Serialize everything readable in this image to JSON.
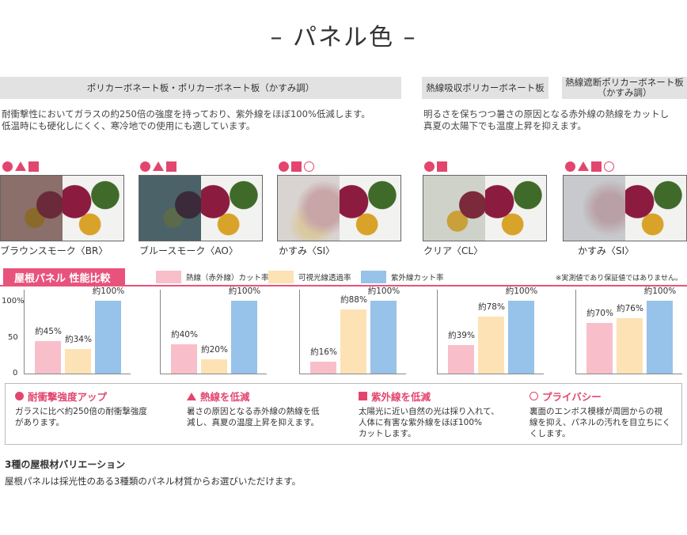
{
  "title": "– パネル色 –",
  "headers": [
    "ポリカーボネート板・ポリカーボネート板（かすみ調）",
    "熱線吸収ポリカーボネート板",
    "熱線遮断ポリカーボネート板（かすみ調）"
  ],
  "descriptions": [
    [
      "耐衝撃性においてガラスの約250倍の強度を持っており、紫外線をほぼ100%低減します。",
      "低温時にも硬化しにくく、寒冷地での使用にも適しています。"
    ],
    [
      "明るさを保ちつつ暑さの原因となる赤外線の熱線をカットし",
      "真夏の太陽下でも温度上昇を抑えます。"
    ]
  ],
  "panels": [
    {
      "label": "ブラウンスモーク〈BR〉",
      "marks": [
        "circle",
        "triangle",
        "square"
      ],
      "tint": "#8a6f6a"
    },
    {
      "label": "ブルースモーク〈AO〉",
      "marks": [
        "circle",
        "triangle",
        "square"
      ],
      "tint": "#4a6268"
    },
    {
      "label": "かすみ〈SI〉",
      "marks": [
        "circle",
        "square",
        "circle-outline"
      ],
      "tint": "#d9d4d2"
    },
    {
      "label": "クリア〈CL〉",
      "marks": [
        "circle",
        "square"
      ],
      "tint": "#cfd2c8"
    },
    {
      "label": "かすみ〈SI〉",
      "marks": [
        "circle",
        "triangle",
        "square",
        "circle-outline"
      ],
      "tint": "#c7c9cc"
    }
  ],
  "performance": {
    "title": "屋根パネル 性能比較",
    "legend": [
      {
        "label": "熱線（赤外線）カット率",
        "color": "#f8bfcb"
      },
      {
        "label": "可視光線透過率",
        "color": "#fde2b5"
      },
      {
        "label": "紫外線カット率",
        "color": "#97c2ea"
      }
    ],
    "note": "※実測値であり保証値ではありません。",
    "ticks": [
      "100%",
      "50",
      "0"
    ]
  },
  "chart_data": [
    {
      "type": "bar",
      "categories": [
        "熱線（赤外線）カット率",
        "可視光線透過率",
        "紫外線カット率"
      ],
      "values": [
        45,
        34,
        100
      ],
      "labels": [
        "約45%",
        "約34%",
        "約100%"
      ],
      "ylim": [
        0,
        100
      ]
    },
    {
      "type": "bar",
      "categories": [
        "熱線（赤外線）カット率",
        "可視光線透過率",
        "紫外線カット率"
      ],
      "values": [
        40,
        20,
        100
      ],
      "labels": [
        "約40%",
        "約20%",
        "約100%"
      ],
      "ylim": [
        0,
        100
      ]
    },
    {
      "type": "bar",
      "categories": [
        "熱線（赤外線）カット率",
        "可視光線透過率",
        "紫外線カット率"
      ],
      "values": [
        16,
        88,
        100
      ],
      "labels": [
        "約16%",
        "約88%",
        "約100%"
      ],
      "ylim": [
        0,
        100
      ]
    },
    {
      "type": "bar",
      "categories": [
        "熱線（赤外線）カット率",
        "可視光線透過率",
        "紫外線カット率"
      ],
      "values": [
        39,
        78,
        100
      ],
      "labels": [
        "約39%",
        "約78%",
        "約100%"
      ],
      "ylim": [
        0,
        100
      ]
    },
    {
      "type": "bar",
      "categories": [
        "熱線（赤外線）カット率",
        "可視光線透過率",
        "紫外線カット率"
      ],
      "values": [
        70,
        76,
        100
      ],
      "labels": [
        "約70%",
        "約76%",
        "約100%"
      ],
      "ylim": [
        0,
        100
      ]
    }
  ],
  "features": [
    {
      "icon": "circle",
      "title": "耐衝撃強度アップ",
      "lines": [
        "ガラスに比べ約250倍の耐衝撃強度",
        "があります。"
      ]
    },
    {
      "icon": "triangle",
      "title": "熱線を低減",
      "lines": [
        "暑さの原因となる赤外線の熱線を低",
        "減し、真夏の温度上昇を抑えます。"
      ]
    },
    {
      "icon": "square",
      "title": "紫外線を低減",
      "lines": [
        "太陽光に近い自然の光は採り入れて、",
        "人体に有害な紫外線をほぼ100%",
        "カットします。"
      ]
    },
    {
      "icon": "circle-outline",
      "title": "プライバシー",
      "lines": [
        "裏面のエンボス模様が周囲からの視",
        "線を抑え、パネルの汚れを目立ちにく",
        "くします。"
      ]
    }
  ],
  "variation": {
    "heading": "3種の屋根材バリエーション",
    "body": "屋根パネルは採光性のある3種類のパネル材質からお選びいただけます。"
  }
}
